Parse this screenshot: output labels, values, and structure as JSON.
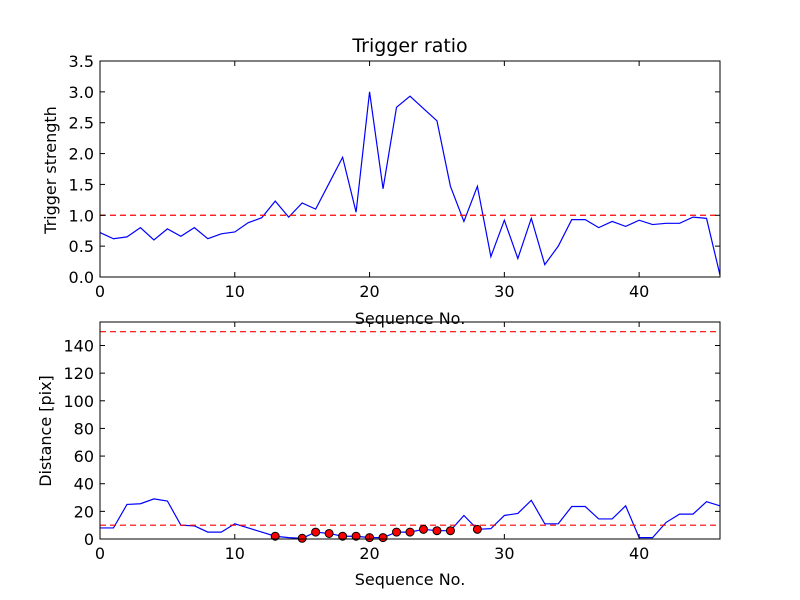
{
  "figure": {
    "background": "#ffffff"
  },
  "chart_data": [
    {
      "type": "line",
      "title": "Trigger ratio",
      "xlabel": "Sequence No.",
      "ylabel": "Trigger strength",
      "xlim": [
        0,
        46
      ],
      "ylim": [
        0,
        3.5
      ],
      "xticks": [
        0,
        10,
        20,
        30,
        40
      ],
      "yticks": [
        0.0,
        0.5,
        1.0,
        1.5,
        2.0,
        2.5,
        3.0,
        3.5
      ],
      "ytick_decimals": 1,
      "grid": false,
      "series": [
        {
          "style": "line",
          "color": "#0000ff",
          "x": [
            0,
            1,
            2,
            3,
            4,
            5,
            6,
            7,
            8,
            9,
            10,
            11,
            12,
            13,
            14,
            15,
            16,
            17,
            18,
            19,
            20,
            21,
            22,
            23,
            24,
            25,
            26,
            27,
            28,
            29,
            30,
            31,
            32,
            33,
            34,
            35,
            36,
            37,
            38,
            39,
            40,
            41,
            42,
            43,
            44,
            45,
            46
          ],
          "y": [
            0.72,
            0.62,
            0.65,
            0.8,
            0.6,
            0.78,
            0.66,
            0.8,
            0.62,
            0.7,
            0.73,
            0.88,
            0.96,
            1.23,
            0.97,
            1.2,
            1.1,
            1.52,
            1.94,
            1.05,
            3.0,
            1.43,
            2.75,
            2.93,
            2.73,
            2.53,
            1.47,
            0.9,
            1.47,
            0.33,
            0.92,
            0.3,
            0.95,
            0.2,
            0.5,
            0.93,
            0.93,
            0.8,
            0.9,
            0.82,
            0.92,
            0.85,
            0.87,
            0.87,
            0.97,
            0.95,
            0.03
          ]
        },
        {
          "style": "hline",
          "color": "#ff0000",
          "dash": "dashed",
          "y": 1.0
        }
      ]
    },
    {
      "type": "line",
      "title": "",
      "xlabel": "Sequence No.",
      "ylabel": "Distance [pix]",
      "xlim": [
        0,
        46
      ],
      "ylim": [
        0,
        157
      ],
      "xticks": [
        0,
        10,
        20,
        30,
        40
      ],
      "yticks": [
        0,
        20,
        40,
        60,
        80,
        100,
        120,
        140
      ],
      "ytick_decimals": 0,
      "grid": false,
      "series": [
        {
          "style": "line",
          "color": "#0000ff",
          "x": [
            0,
            1,
            2,
            3,
            4,
            5,
            6,
            7,
            8,
            9,
            10,
            11,
            12,
            13,
            14,
            15,
            16,
            17,
            18,
            19,
            20,
            21,
            22,
            23,
            24,
            25,
            26,
            27,
            28,
            29,
            30,
            31,
            32,
            33,
            34,
            35,
            36,
            37,
            38,
            39,
            40,
            41,
            42,
            43,
            44,
            45,
            46
          ],
          "y": [
            8,
            8,
            25,
            25.5,
            29,
            27.5,
            10,
            9.5,
            5,
            5,
            11,
            8,
            5,
            2,
            1,
            0.5,
            5,
            4,
            2,
            2,
            1,
            1,
            5,
            5,
            7,
            6,
            6,
            17,
            7,
            7.5,
            17,
            18.5,
            28,
            11,
            11,
            23.5,
            23.5,
            14.5,
            14.5,
            24,
            1,
            1,
            12,
            18,
            18,
            27,
            24
          ]
        },
        {
          "style": "hline",
          "color": "#ff0000",
          "dash": "dashed",
          "y": 10
        },
        {
          "style": "hline",
          "color": "#ff0000",
          "dash": "dashed",
          "y": 150
        },
        {
          "style": "markers",
          "color": "#ff0000",
          "edge": "#000000",
          "x": [
            13,
            15,
            16,
            17,
            18,
            19,
            20,
            21,
            22,
            23,
            24,
            25,
            26,
            28
          ],
          "y": [
            2,
            0.5,
            5,
            4,
            2,
            2,
            1,
            1,
            5,
            5,
            7,
            6,
            6,
            7
          ]
        }
      ]
    }
  ]
}
